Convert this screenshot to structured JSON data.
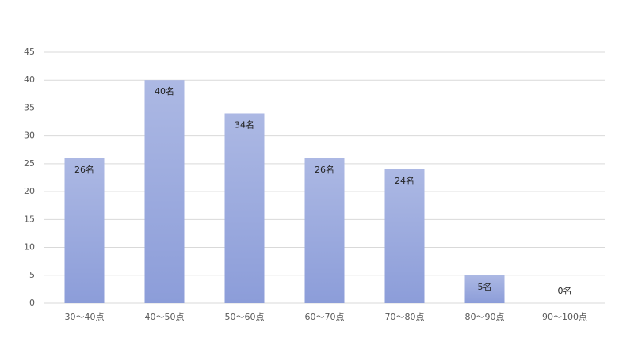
{
  "chart_data": {
    "type": "bar",
    "categories": [
      "30〜40点",
      "40〜50点",
      "50〜60点",
      "60〜70点",
      "70〜80点",
      "80〜90点",
      "90〜100点"
    ],
    "values": [
      26,
      40,
      34,
      26,
      24,
      5,
      0
    ],
    "value_labels": [
      "26名",
      "40名",
      "34名",
      "26名",
      "24名",
      "5名",
      "0名"
    ],
    "color": "#8c9dd9",
    "ylim": [
      0,
      45
    ],
    "yticks": [
      0,
      5,
      10,
      15,
      20,
      25,
      30,
      35,
      40,
      45
    ],
    "grid": true
  }
}
